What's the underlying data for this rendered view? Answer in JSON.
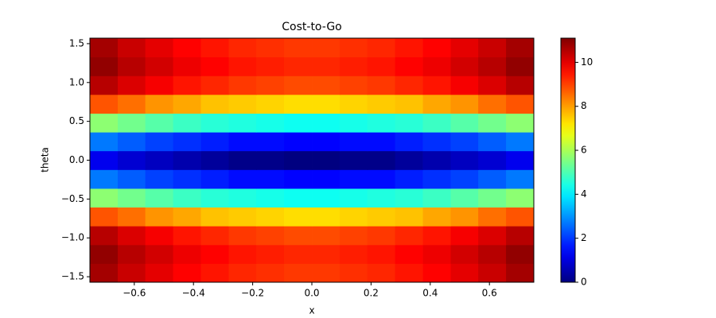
{
  "chart_data": {
    "type": "heatmap",
    "title": "Cost-to-Go",
    "x_label": "x",
    "y_label": "theta",
    "colormap": "jet",
    "clim": [
      0,
      11.1
    ],
    "xlim": [
      -0.75,
      0.75
    ],
    "ylim": [
      -1.5708,
      1.5708
    ],
    "xticks": [
      {
        "value": -0.6,
        "label": "−0.6"
      },
      {
        "value": -0.4,
        "label": "−0.4"
      },
      {
        "value": -0.2,
        "label": "−0.2"
      },
      {
        "value": 0,
        "label": "0.0"
      },
      0.2,
      0.4,
      0.6
    ],
    "yticks": [
      {
        "value": -1.5,
        "label": "−1.5"
      },
      {
        "value": -1,
        "label": "−1.0"
      },
      {
        "value": -0.5,
        "label": "−0.5"
      },
      {
        "value": 0,
        "label": "0.0"
      },
      0.5,
      {
        "value": 1,
        "label": "1.0"
      },
      1.5
    ],
    "cbar_ticks": [
      0,
      2,
      4,
      6,
      8,
      10
    ],
    "x": [
      -0.703,
      -0.609,
      -0.516,
      -0.422,
      -0.328,
      -0.234,
      -0.141,
      -0.047,
      0.047,
      0.141,
      0.234,
      0.328,
      0.422,
      0.516,
      0.609,
      0.703
    ],
    "y": [
      -1.45,
      -1.208,
      -0.967,
      -0.725,
      -0.483,
      -0.242,
      0,
      0.242,
      0.483,
      0.725,
      0.967,
      1.208,
      1.45
    ],
    "z": [
      [
        10.7,
        10.3,
        10.0,
        9.7,
        9.5,
        9.3,
        9.2,
        9.1,
        9.1,
        9.2,
        9.3,
        9.5,
        9.7,
        10.0,
        10.3,
        10.7
      ],
      [
        10.9,
        10.5,
        10.2,
        9.9,
        9.7,
        9.5,
        9.4,
        9.3,
        9.3,
        9.4,
        9.5,
        9.7,
        9.9,
        10.2,
        10.5,
        10.9
      ],
      [
        10.5,
        10.1,
        9.8,
        9.5,
        9.3,
        9.1,
        9.0,
        8.9,
        8.9,
        9.0,
        9.1,
        9.3,
        9.5,
        9.8,
        10.1,
        10.5
      ],
      [
        8.8,
        8.5,
        8.1,
        7.9,
        7.6,
        7.5,
        7.4,
        7.3,
        7.3,
        7.4,
        7.5,
        7.6,
        7.9,
        8.1,
        8.5,
        8.8
      ],
      [
        5.7,
        5.4,
        5.1,
        4.8,
        4.6,
        4.5,
        4.4,
        4.3,
        4.3,
        4.4,
        4.5,
        4.6,
        4.8,
        5.1,
        5.4,
        5.7
      ],
      [
        2.7,
        2.4,
        2.1,
        1.9,
        1.7,
        1.5,
        1.5,
        1.4,
        1.4,
        1.5,
        1.5,
        1.7,
        1.9,
        2.1,
        2.4,
        2.7
      ],
      [
        1.2,
        0.9,
        0.7,
        0.5,
        0.3,
        0.1,
        0.1,
        0.0,
        0.0,
        0.1,
        0.1,
        0.3,
        0.5,
        0.7,
        0.9,
        1.2
      ],
      [
        2.7,
        2.4,
        2.1,
        1.9,
        1.7,
        1.5,
        1.5,
        1.4,
        1.4,
        1.5,
        1.5,
        1.7,
        1.9,
        2.1,
        2.4,
        2.7
      ],
      [
        5.7,
        5.4,
        5.1,
        4.8,
        4.6,
        4.5,
        4.4,
        4.3,
        4.3,
        4.4,
        4.5,
        4.6,
        4.8,
        5.1,
        5.4,
        5.7
      ],
      [
        8.8,
        8.5,
        8.1,
        7.9,
        7.6,
        7.5,
        7.4,
        7.3,
        7.3,
        7.4,
        7.5,
        7.6,
        7.9,
        8.1,
        8.5,
        8.8
      ],
      [
        10.5,
        10.1,
        9.8,
        9.5,
        9.3,
        9.1,
        9.0,
        8.9,
        8.9,
        9.0,
        9.1,
        9.3,
        9.5,
        9.8,
        10.1,
        10.5
      ],
      [
        10.9,
        10.5,
        10.2,
        9.9,
        9.7,
        9.5,
        9.4,
        9.3,
        9.3,
        9.4,
        9.5,
        9.7,
        9.9,
        10.2,
        10.5,
        10.9
      ],
      [
        10.7,
        10.3,
        10.0,
        9.7,
        9.5,
        9.3,
        9.2,
        9.1,
        9.1,
        9.2,
        9.3,
        9.5,
        9.7,
        10.0,
        10.3,
        10.7
      ]
    ]
  }
}
